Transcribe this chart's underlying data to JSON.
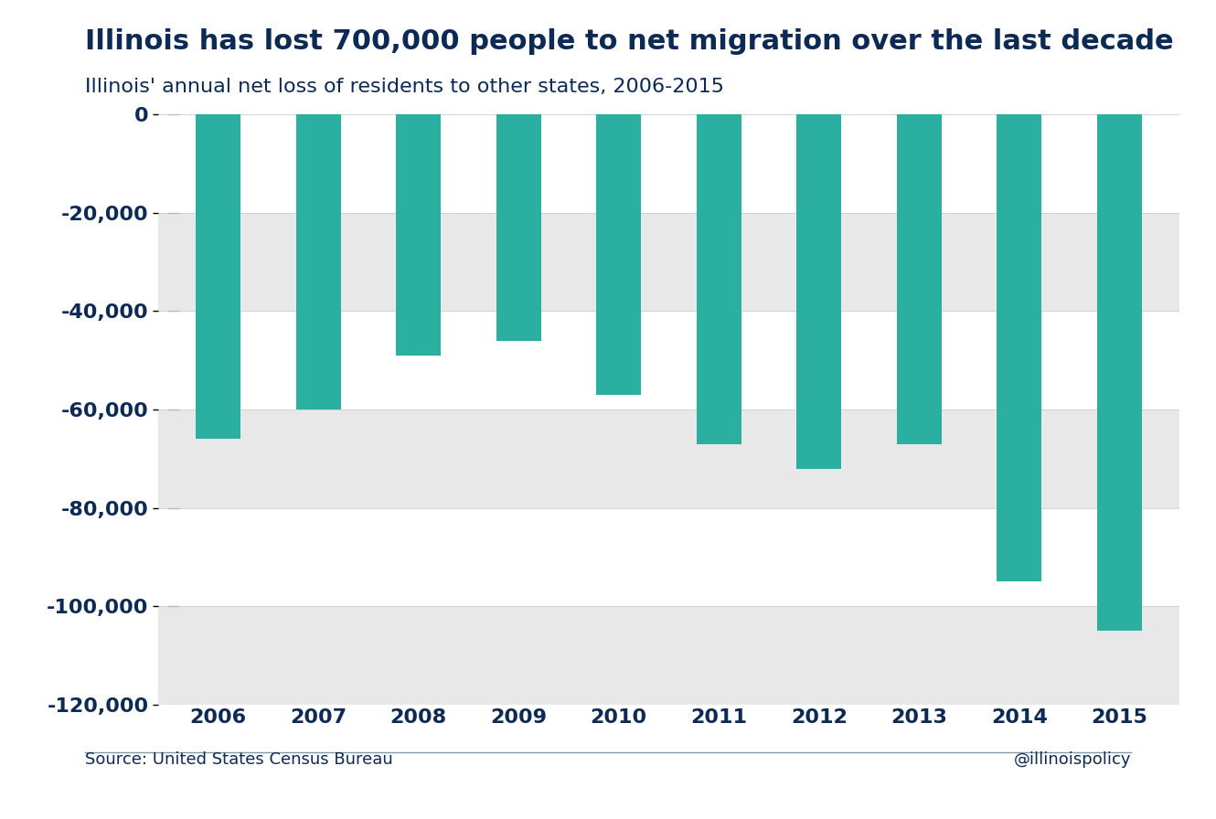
{
  "title": "Illinois has lost 700,000 people to net migration over the last decade",
  "subtitle": "Illinois' annual net loss of residents to other states, 2006-2015",
  "source": "Source: United States Census Bureau",
  "handle": "@illinoispolicy",
  "years": [
    2006,
    2007,
    2008,
    2009,
    2010,
    2011,
    2012,
    2013,
    2014,
    2015
  ],
  "values": [
    -66000,
    -60000,
    -49000,
    -46000,
    -57000,
    -67000,
    -72000,
    -67000,
    -95000,
    -105000
  ],
  "bar_color": "#2AAFA0",
  "background_color": "#FFFFFF",
  "band_colors": [
    "#FFFFFF",
    "#E8E8E8"
  ],
  "title_color": "#0D2A54",
  "subtitle_color": "#0D2A54",
  "tick_color": "#0D2A54",
  "source_color": "#0D2A54",
  "line_color": "#8899AA",
  "ylim": [
    -120000,
    0
  ],
  "yticks": [
    0,
    -20000,
    -40000,
    -60000,
    -80000,
    -100000,
    -120000
  ],
  "title_fontsize": 22,
  "subtitle_fontsize": 16,
  "source_fontsize": 13,
  "tick_fontsize": 16,
  "xtick_fontsize": 16,
  "bar_width": 0.45
}
